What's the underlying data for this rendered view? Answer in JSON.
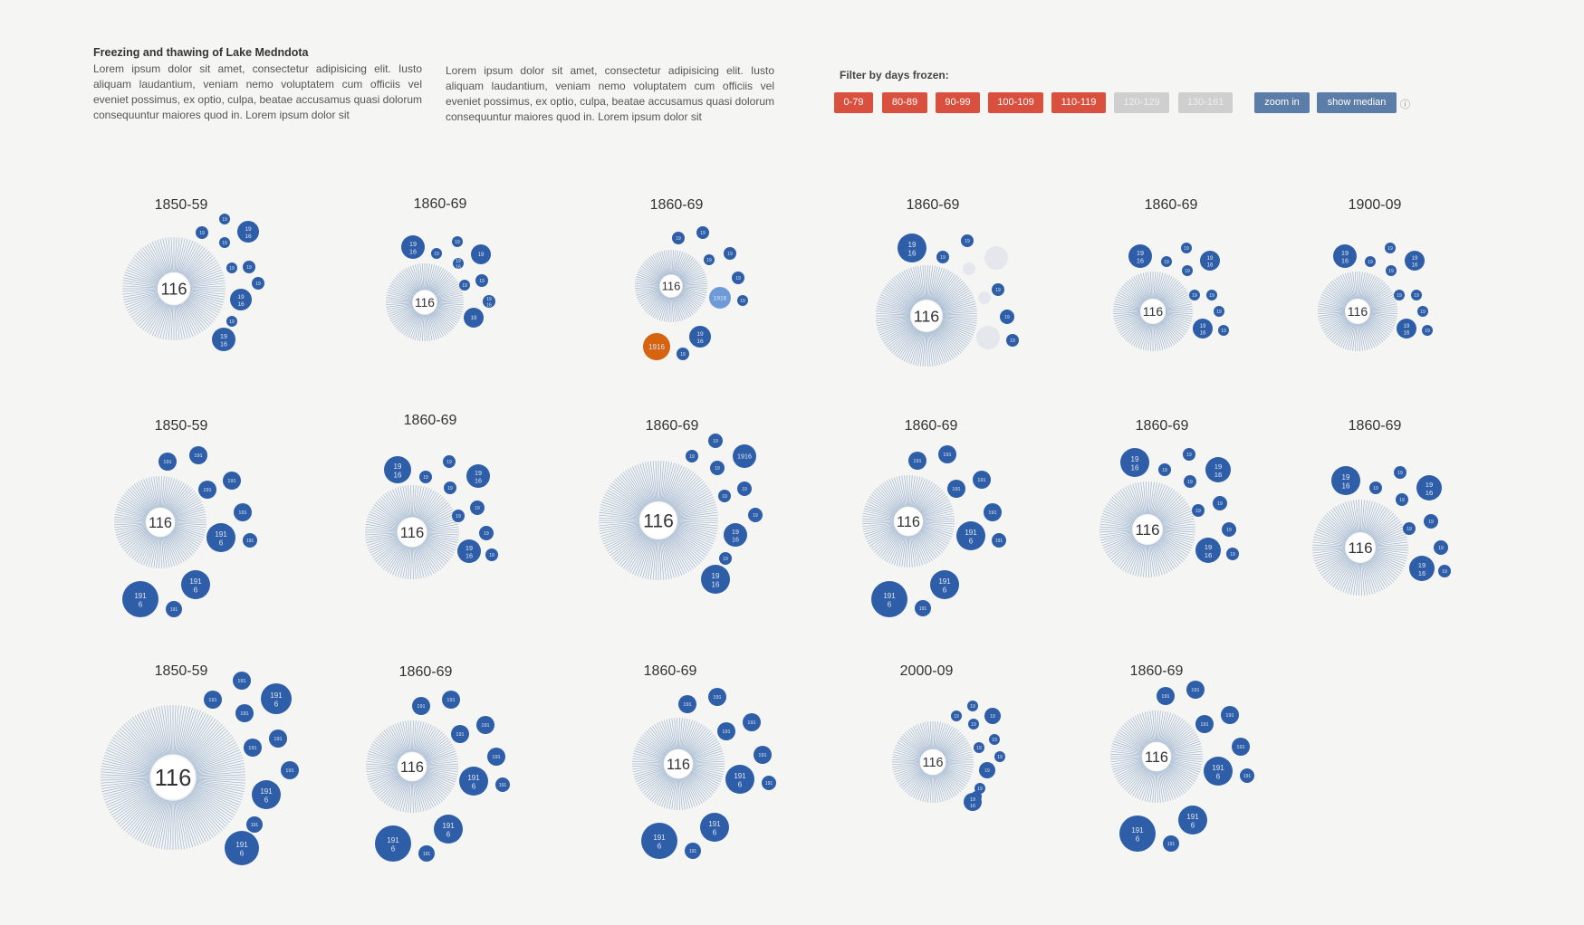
{
  "intro": {
    "title": "Freezing and thawing of Lake Medndota",
    "paragraph1": "Lorem ipsum dolor sit amet, consectetur adipisicing elit. Iusto aliquam laudantium, veniam nemo voluptatem cum officiis vel eveniet possimus, ex optio, culpa, beatae accusamus quasi dolorum consequuntur maiores quod in. Lorem ipsum dolor sit",
    "paragraph2": "Lorem ipsum dolor sit amet, consectetur adipisicing elit. Iusto aliquam laudantium, veniam nemo voluptatem cum officiis vel eveniet possimus, ex optio, culpa, beatae accusamus quasi dolorum consequuntur maiores quod in. Lorem ipsum dolor sit"
  },
  "filter": {
    "title": "Filter by days frozen:",
    "buttons": [
      {
        "label": "0-79",
        "active": true
      },
      {
        "label": "80-89",
        "active": true
      },
      {
        "label": "90-99",
        "active": true
      },
      {
        "label": "100-109",
        "active": true
      },
      {
        "label": "110-119",
        "active": true
      },
      {
        "label": "120-129",
        "active": false
      },
      {
        "label": "130-161",
        "active": false
      }
    ],
    "zoom_label": "zoom in",
    "median_label": "show median",
    "info_icon": "ⓘ"
  },
  "colors": {
    "bubble": "#2f5ea8",
    "bubble_highlight": "#6e9bd8",
    "bubble_selected": "#d5630f",
    "bubble_faded": "#e6e7ec",
    "ray": "#9fb5cf",
    "filter_active": "#d9503f",
    "filter_inactive": "#cfcfcf",
    "action": "#5b7da8"
  },
  "chart_data": {
    "type": "radial-bubble-grid",
    "title": "",
    "center_value": "116",
    "panels": [
      {
        "decade": "1850-59",
        "rays": 116,
        "years": [
          {
            "label": "19"
          },
          {
            "label": "19"
          },
          {
            "label": "19 16"
          },
          {
            "label": "19"
          },
          {
            "label": "19"
          },
          {
            "label": "19"
          },
          {
            "label": "19"
          },
          {
            "label": "19 16"
          },
          {
            "label": "19"
          },
          {
            "label": "19 16"
          }
        ]
      },
      {
        "decade": "1860-69",
        "rays": 100,
        "years": [
          {
            "label": "19 16"
          },
          {
            "label": "19"
          },
          {
            "label": "19"
          },
          {
            "label": "19"
          },
          {
            "label": "19 16"
          },
          {
            "label": "19"
          },
          {
            "label": "19"
          },
          {
            "label": "19 16"
          },
          {
            "label": "19"
          }
        ]
      },
      {
        "decade": "1860-69",
        "rays": 96,
        "years": [
          {
            "label": "19"
          },
          {
            "label": "19"
          },
          {
            "label": "19"
          },
          {
            "label": "19"
          },
          {
            "label": "19"
          },
          {
            "label": "1916",
            "state": "highlight"
          },
          {
            "label": "19"
          },
          {
            "label": "19 16"
          },
          {
            "label": "19"
          },
          {
            "label": "1916",
            "state": "selected"
          }
        ]
      },
      {
        "decade": "1860-69",
        "rays": 130,
        "years": [
          {
            "label": "19 16"
          },
          {
            "label": "19"
          },
          {
            "label": "19"
          },
          {
            "label": "19 16",
            "state": "faded"
          },
          {
            "label": "19",
            "state": "faded"
          },
          {
            "label": "19",
            "state": "faded"
          },
          {
            "label": "19"
          },
          {
            "label": "19"
          },
          {
            "label": "19 16",
            "state": "faded"
          },
          {
            "label": "19"
          }
        ]
      },
      {
        "decade": "1860-69",
        "rays": 100,
        "years": [
          {
            "label": "19 16"
          },
          {
            "label": "19"
          },
          {
            "label": "19"
          },
          {
            "label": "19"
          },
          {
            "label": "19 16"
          },
          {
            "label": "19"
          },
          {
            "label": "19"
          },
          {
            "label": "19"
          },
          {
            "label": "19 16"
          },
          {
            "label": "19"
          }
        ]
      },
      {
        "decade": "1900-09",
        "rays": 100,
        "years": [
          {
            "label": "19 16"
          },
          {
            "label": "19"
          },
          {
            "label": "19"
          },
          {
            "label": "19"
          },
          {
            "label": "19 16"
          },
          {
            "label": "19"
          },
          {
            "label": "19"
          },
          {
            "label": "19"
          },
          {
            "label": "19 16"
          },
          {
            "label": "19"
          }
        ]
      },
      {
        "decade": "1850-59",
        "rays": 110,
        "years": [
          {
            "label": "191"
          },
          {
            "label": "191"
          },
          {
            "label": "191"
          },
          {
            "label": "191"
          },
          {
            "label": "191"
          },
          {
            "label": "191 6"
          },
          {
            "label": "191"
          },
          {
            "label": "191 6"
          },
          {
            "label": "191 6"
          },
          {
            "label": "191"
          }
        ]
      },
      {
        "decade": "1860-69",
        "rays": 110,
        "years": [
          {
            "label": "19 16"
          },
          {
            "label": "19"
          },
          {
            "label": "19"
          },
          {
            "label": "19 16"
          },
          {
            "label": "19"
          },
          {
            "label": "19"
          },
          {
            "label": "19"
          },
          {
            "label": "19"
          },
          {
            "label": "19 16"
          },
          {
            "label": "19"
          }
        ]
      },
      {
        "decade": "1860-69",
        "rays": 140,
        "years": [
          {
            "label": "19"
          },
          {
            "label": "19"
          },
          {
            "label": "1916"
          },
          {
            "label": "19"
          },
          {
            "label": "19"
          },
          {
            "label": "19"
          },
          {
            "label": "19"
          },
          {
            "label": "19 16"
          },
          {
            "label": "19"
          },
          {
            "label": "19 16"
          }
        ]
      },
      {
        "decade": "1860-69",
        "rays": 110,
        "years": [
          {
            "label": "191"
          },
          {
            "label": "191"
          },
          {
            "label": "191"
          },
          {
            "label": "191"
          },
          {
            "label": "191"
          },
          {
            "label": "191 6"
          },
          {
            "label": "191"
          },
          {
            "label": "191 6"
          },
          {
            "label": "191 6"
          },
          {
            "label": "191"
          }
        ]
      },
      {
        "decade": "1860-69",
        "rays": 110,
        "years": [
          {
            "label": "19 16"
          },
          {
            "label": "19"
          },
          {
            "label": "19"
          },
          {
            "label": "19 16"
          },
          {
            "label": "19"
          },
          {
            "label": "19"
          },
          {
            "label": "19"
          },
          {
            "label": "19"
          },
          {
            "label": "19 16"
          },
          {
            "label": "19"
          }
        ]
      },
      {
        "decade": "1860-69",
        "rays": 110,
        "years": [
          {
            "label": "19 16"
          },
          {
            "label": "19"
          },
          {
            "label": "19"
          },
          {
            "label": "19 16"
          },
          {
            "label": "19"
          },
          {
            "label": "19"
          },
          {
            "label": "19"
          },
          {
            "label": "19"
          },
          {
            "label": "19 16"
          },
          {
            "label": "19"
          }
        ]
      },
      {
        "decade": "1850-59",
        "rays": 160,
        "years": [
          {
            "label": "191"
          },
          {
            "label": "191"
          },
          {
            "label": "191 6"
          },
          {
            "label": "191"
          },
          {
            "label": "191"
          },
          {
            "label": "191"
          },
          {
            "label": "191"
          },
          {
            "label": "191 6"
          },
          {
            "label": "191"
          },
          {
            "label": "191 6"
          }
        ]
      },
      {
        "decade": "1860-69",
        "rays": 110,
        "years": [
          {
            "label": "191"
          },
          {
            "label": "191"
          },
          {
            "label": "191"
          },
          {
            "label": "191"
          },
          {
            "label": "191"
          },
          {
            "label": "191 6"
          },
          {
            "label": "191"
          },
          {
            "label": "191 6"
          },
          {
            "label": "191 6"
          },
          {
            "label": "191"
          }
        ]
      },
      {
        "decade": "1860-69",
        "rays": 110,
        "years": [
          {
            "label": "191"
          },
          {
            "label": "191"
          },
          {
            "label": "191"
          },
          {
            "label": "191"
          },
          {
            "label": "191"
          },
          {
            "label": "191 6"
          },
          {
            "label": "191"
          },
          {
            "label": "191 6"
          },
          {
            "label": "191 6"
          },
          {
            "label": "191"
          }
        ]
      },
      {
        "decade": "2000-09",
        "rays": 100,
        "years": [
          {
            "label": "19"
          },
          {
            "label": "19"
          },
          {
            "label": "19"
          },
          {
            "label": "19"
          },
          {
            "label": "19"
          },
          {
            "label": "19"
          },
          {
            "label": "19"
          },
          {
            "label": "19"
          },
          {
            "label": "19"
          },
          {
            "label": "19"
          },
          {
            "label": "19 16"
          }
        ]
      },
      {
        "decade": "1860-69",
        "rays": 110,
        "years": [
          {
            "label": "191"
          },
          {
            "label": "191"
          },
          {
            "label": "191"
          },
          {
            "label": "191"
          },
          {
            "label": "191"
          },
          {
            "label": "191 6"
          },
          {
            "label": "191"
          },
          {
            "label": "191 6"
          },
          {
            "label": "191 6"
          },
          {
            "label": "191"
          }
        ]
      }
    ]
  }
}
